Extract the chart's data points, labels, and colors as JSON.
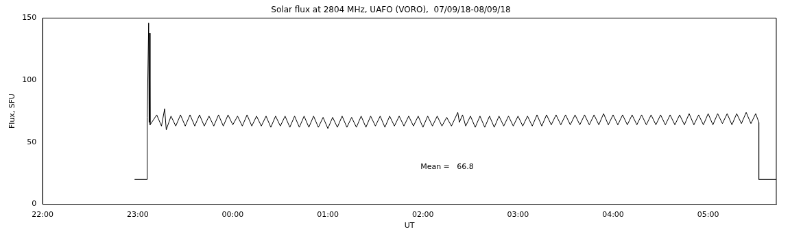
{
  "chart_data": {
    "type": "line",
    "title": "Solar flux at 2804 MHz, UAFO (VORO),  07/09/18-08/09/18",
    "xlabel": "UT",
    "ylabel": "Flux, SFU",
    "annotations": [
      "Mean =   66.8"
    ],
    "xlim": [
      "--09-07T22:00",
      "--09-08T05:43"
    ],
    "xticks": [
      {
        "value": "--09-07T22:00",
        "label": "22:00"
      },
      {
        "value": "--09-07T23:00",
        "label": "23:00"
      },
      {
        "value": "--09-08T00:00",
        "label": "00:00"
      },
      {
        "value": "--09-08T01:00",
        "label": "01:00"
      },
      {
        "value": "--09-08T02:00",
        "label": "02:00"
      },
      {
        "value": "--09-08T03:00",
        "label": "03:00"
      },
      {
        "value": "--09-08T04:00",
        "label": "04:00"
      },
      {
        "value": "--09-08T05:00",
        "label": "05:00"
      }
    ],
    "ylim": [
      0,
      150
    ],
    "yticks": [
      0,
      50,
      100,
      150
    ],
    "grid": false,
    "legend": false,
    "marker": "none",
    "line_style": "solid",
    "series": [
      {
        "color": "#000000",
        "x": [
          "--09-07T22:58",
          "--09-07T23:06",
          "--09-07T23:06",
          "--09-07T23:06:54",
          "--09-07T23:07:12",
          "--09-07T23:07:30",
          "--09-07T23:07:48",
          "--09-07T23:12",
          "--09-07T23:15",
          "--09-07T23:17",
          "--09-07T23:18",
          "--09-07T23:21",
          "--09-07T23:24",
          "--09-07T23:27",
          "--09-07T23:30",
          "--09-07T23:33",
          "--09-07T23:36",
          "--09-07T23:39",
          "--09-07T23:42",
          "--09-07T23:45",
          "--09-07T23:48",
          "--09-07T23:51",
          "--09-07T23:54",
          "--09-07T23:57",
          "--09-08T00:00",
          "--09-08T00:03",
          "--09-08T00:06",
          "--09-08T00:09",
          "--09-08T00:12",
          "--09-08T00:15",
          "--09-08T00:18",
          "--09-08T00:21",
          "--09-08T00:24",
          "--09-08T00:27",
          "--09-08T00:30",
          "--09-08T00:33",
          "--09-08T00:36",
          "--09-08T00:39",
          "--09-08T00:42",
          "--09-08T00:45",
          "--09-08T00:48",
          "--09-08T00:51",
          "--09-08T00:54",
          "--09-08T00:57",
          "--09-08T01:00",
          "--09-08T01:03",
          "--09-08T01:06",
          "--09-08T01:09",
          "--09-08T01:12",
          "--09-08T01:15",
          "--09-08T01:18",
          "--09-08T01:21",
          "--09-08T01:24",
          "--09-08T01:27",
          "--09-08T01:30",
          "--09-08T01:33",
          "--09-08T01:36",
          "--09-08T01:39",
          "--09-08T01:42",
          "--09-08T01:45",
          "--09-08T01:48",
          "--09-08T01:51",
          "--09-08T01:54",
          "--09-08T01:57",
          "--09-08T02:00",
          "--09-08T02:03",
          "--09-08T02:06",
          "--09-08T02:09",
          "--09-08T02:12",
          "--09-08T02:15",
          "--09-08T02:18",
          "--09-08T02:22",
          "--09-08T02:23",
          "--09-08T02:25",
          "--09-08T02:27",
          "--09-08T02:30",
          "--09-08T02:33",
          "--09-08T02:36",
          "--09-08T02:39",
          "--09-08T02:42",
          "--09-08T02:45",
          "--09-08T02:48",
          "--09-08T02:51",
          "--09-08T02:54",
          "--09-08T02:57",
          "--09-08T03:00",
          "--09-08T03:03",
          "--09-08T03:06",
          "--09-08T03:09",
          "--09-08T03:12",
          "--09-08T03:15",
          "--09-08T03:18",
          "--09-08T03:21",
          "--09-08T03:24",
          "--09-08T03:27",
          "--09-08T03:30",
          "--09-08T03:33",
          "--09-08T03:36",
          "--09-08T03:39",
          "--09-08T03:42",
          "--09-08T03:45",
          "--09-08T03:48",
          "--09-08T03:51",
          "--09-08T03:54",
          "--09-08T03:57",
          "--09-08T04:00",
          "--09-08T04:03",
          "--09-08T04:06",
          "--09-08T04:09",
          "--09-08T04:12",
          "--09-08T04:15",
          "--09-08T04:18",
          "--09-08T04:21",
          "--09-08T04:24",
          "--09-08T04:27",
          "--09-08T04:30",
          "--09-08T04:33",
          "--09-08T04:36",
          "--09-08T04:39",
          "--09-08T04:42",
          "--09-08T04:45",
          "--09-08T04:48",
          "--09-08T04:51",
          "--09-08T04:54",
          "--09-08T04:57",
          "--09-08T05:00",
          "--09-08T05:03",
          "--09-08T05:06",
          "--09-08T05:09",
          "--09-08T05:12",
          "--09-08T05:15",
          "--09-08T05:18",
          "--09-08T05:21",
          "--09-08T05:24",
          "--09-08T05:27",
          "--09-08T05:30",
          "--09-08T05:32",
          "--09-08T05:32",
          "--09-08T05:43"
        ],
        "values": [
          20,
          20,
          70,
          146,
          66,
          138,
          64,
          72,
          63,
          77,
          60,
          71,
          63,
          72,
          63,
          72,
          63,
          72,
          63,
          71,
          63,
          72,
          63,
          72,
          64,
          71,
          63,
          72,
          63,
          71,
          63,
          71,
          62,
          71,
          63,
          71,
          62,
          71,
          62,
          71,
          62,
          71,
          62,
          70,
          61,
          70,
          62,
          71,
          62,
          70,
          62,
          71,
          62,
          71,
          63,
          71,
          62,
          71,
          63,
          71,
          63,
          71,
          63,
          71,
          62,
          71,
          63,
          71,
          63,
          70,
          63,
          74,
          66,
          72,
          63,
          71,
          62,
          71,
          62,
          71,
          62,
          71,
          63,
          71,
          63,
          71,
          63,
          71,
          63,
          72,
          63,
          72,
          64,
          72,
          64,
          72,
          64,
          72,
          64,
          72,
          64,
          72,
          64,
          73,
          64,
          72,
          64,
          72,
          64,
          72,
          64,
          72,
          64,
          72,
          64,
          72,
          64,
          72,
          64,
          72,
          64,
          73,
          64,
          72,
          64,
          73,
          64,
          73,
          65,
          73,
          64,
          73,
          65,
          74,
          65,
          73,
          66,
          20,
          20
        ]
      }
    ]
  }
}
